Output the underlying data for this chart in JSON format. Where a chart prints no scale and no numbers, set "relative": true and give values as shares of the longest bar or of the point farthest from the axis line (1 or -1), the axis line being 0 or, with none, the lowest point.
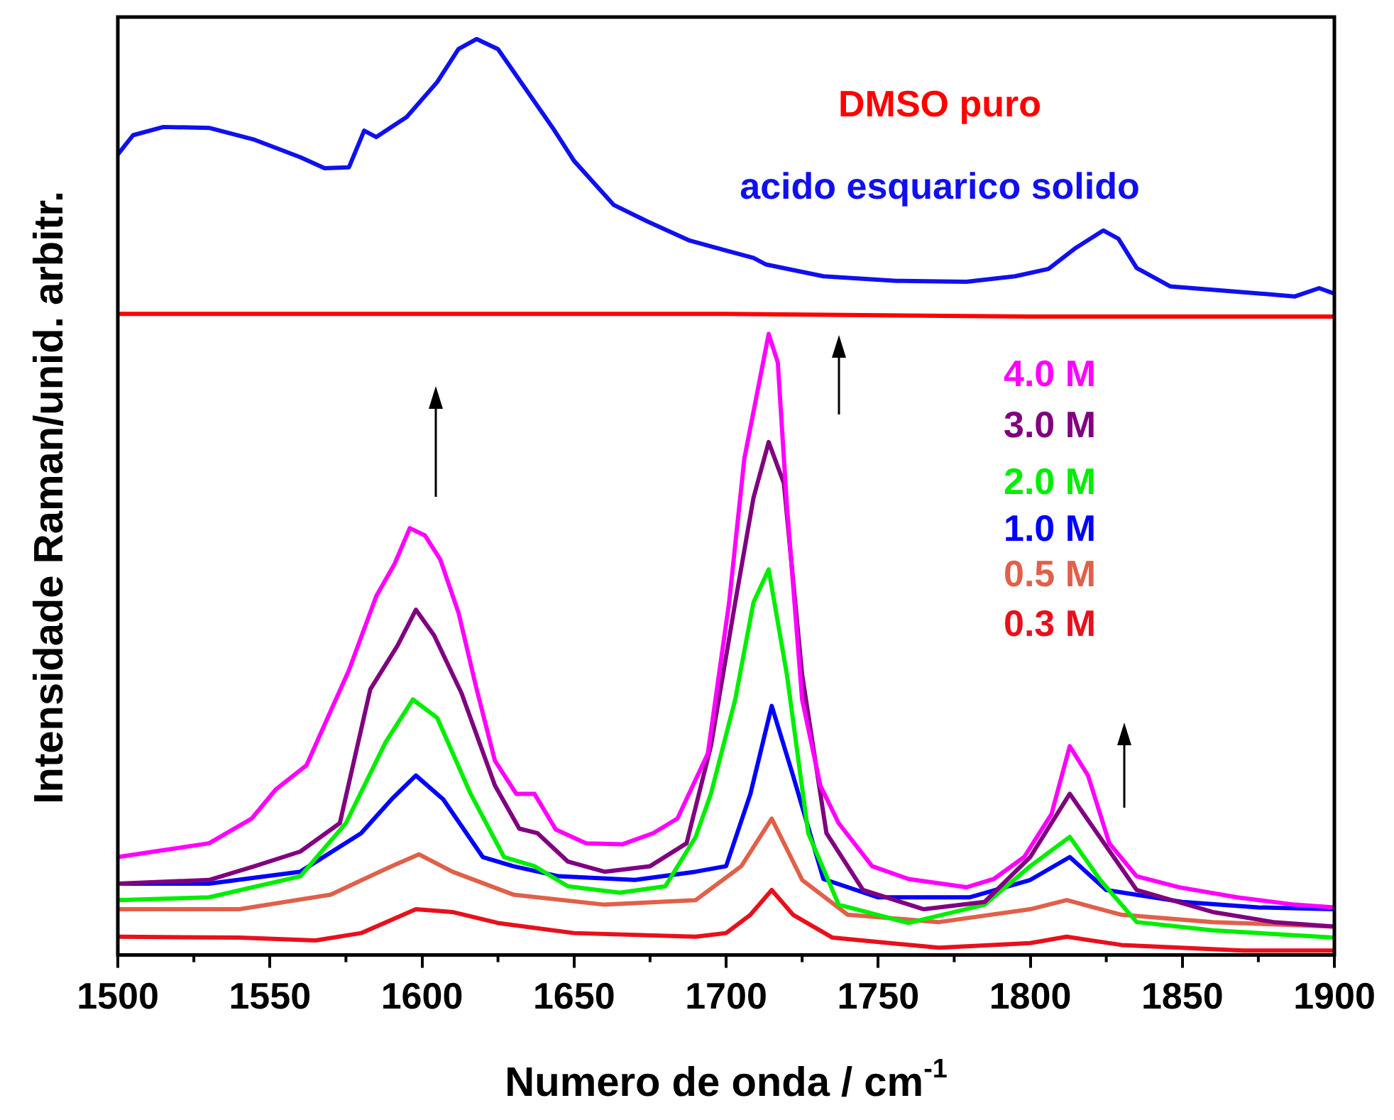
{
  "chart_data": {
    "type": "line",
    "xlabel": "Numero de onda / cm$^{-1}$",
    "ylabel": "Intensidade Raman/unid. arbitr.",
    "xlim": [
      1500,
      1900
    ],
    "xticks": [
      1500,
      1550,
      1600,
      1650,
      1700,
      1750,
      1800,
      1850,
      1900
    ],
    "relative": true,
    "tick_labels": "x",
    "line_style": "solid",
    "series": [
      {
        "name": "acido esquarico solido",
        "color": "#1010ee",
        "x": [
          1500,
          1505,
          1515,
          1530,
          1545,
          1560,
          1568,
          1576,
          1581,
          1585,
          1595,
          1605,
          1612,
          1618,
          1625,
          1643,
          1650,
          1663,
          1674,
          1688,
          1709,
          1713,
          1732,
          1756,
          1779,
          1795,
          1806,
          1815,
          1824,
          1829,
          1835,
          1846,
          1865,
          1887,
          1895,
          1900
        ],
        "values": [
          0.874,
          0.895,
          0.904,
          0.903,
          0.89,
          0.871,
          0.859,
          0.86,
          0.9,
          0.893,
          0.915,
          0.953,
          0.989,
          1,
          0.989,
          0.903,
          0.867,
          0.819,
          0.801,
          0.78,
          0.761,
          0.754,
          0.741,
          0.736,
          0.735,
          0.741,
          0.749,
          0.772,
          0.791,
          0.782,
          0.75,
          0.73,
          0.725,
          0.719,
          0.728,
          0.722
        ]
      },
      {
        "name": "DMSO puro",
        "color": "#ff0000",
        "x": [
          1500,
          1600,
          1700,
          1800,
          1900
        ],
        "values": [
          0.7,
          0.7,
          0.7,
          0.697,
          0.697
        ]
      },
      {
        "name": "4.0 M",
        "color": "#ff00ff",
        "x": [
          1500,
          1512,
          1530,
          1544,
          1552,
          1562,
          1569,
          1576,
          1585,
          1591,
          1596,
          1601,
          1606,
          1612,
          1618,
          1624,
          1631,
          1637,
          1644,
          1654,
          1666,
          1676,
          1684,
          1694,
          1701,
          1706,
          1714,
          1717,
          1720,
          1725,
          1731,
          1737,
          1748,
          1760,
          1779,
          1788,
          1798,
          1807,
          1813,
          1819,
          1826,
          1835,
          1849,
          1868,
          1887,
          1900
        ],
        "values": [
          0.107,
          0.113,
          0.122,
          0.149,
          0.181,
          0.207,
          0.259,
          0.311,
          0.392,
          0.427,
          0.466,
          0.458,
          0.432,
          0.374,
          0.29,
          0.212,
          0.176,
          0.176,
          0.137,
          0.122,
          0.121,
          0.133,
          0.149,
          0.22,
          0.385,
          0.542,
          0.678,
          0.647,
          0.49,
          0.279,
          0.185,
          0.144,
          0.097,
          0.083,
          0.074,
          0.083,
          0.107,
          0.154,
          0.228,
          0.196,
          0.122,
          0.086,
          0.074,
          0.063,
          0.055,
          0.052
        ]
      },
      {
        "name": "3.0 M",
        "color": "#800080",
        "x": [
          1500,
          1530,
          1545,
          1560,
          1573,
          1583,
          1592,
          1598,
          1604,
          1613,
          1624,
          1632,
          1638,
          1648,
          1660,
          1675,
          1687,
          1695,
          1703,
          1709,
          1714,
          1719,
          1725,
          1733,
          1745,
          1765,
          1785,
          1800,
          1813,
          1822,
          1835,
          1860,
          1880,
          1900
        ],
        "values": [
          0.078,
          0.082,
          0.097,
          0.113,
          0.144,
          0.29,
          0.338,
          0.377,
          0.349,
          0.286,
          0.185,
          0.138,
          0.133,
          0.102,
          0.091,
          0.097,
          0.122,
          0.228,
          0.385,
          0.499,
          0.56,
          0.515,
          0.306,
          0.133,
          0.071,
          0.05,
          0.058,
          0.107,
          0.176,
          0.133,
          0.071,
          0.047,
          0.036,
          0.031
        ]
      },
      {
        "name": "2.0 M",
        "color": "#00ee00",
        "x": [
          1500,
          1530,
          1560,
          1575,
          1588,
          1597,
          1605,
          1616,
          1627,
          1637,
          1648,
          1665,
          1680,
          1690,
          1695,
          1703,
          1709,
          1714,
          1720,
          1727,
          1737,
          1760,
          1785,
          1800,
          1813,
          1823,
          1835,
          1860,
          1900
        ],
        "values": [
          0.06,
          0.063,
          0.086,
          0.144,
          0.232,
          0.279,
          0.259,
          0.176,
          0.107,
          0.097,
          0.075,
          0.068,
          0.075,
          0.129,
          0.176,
          0.279,
          0.385,
          0.421,
          0.306,
          0.133,
          0.055,
          0.035,
          0.055,
          0.097,
          0.129,
          0.082,
          0.036,
          0.027,
          0.019
        ]
      },
      {
        "name": "1.0 M",
        "color": "#0000ff",
        "x": [
          1500,
          1530,
          1560,
          1580,
          1590,
          1598,
          1607,
          1620,
          1630,
          1645,
          1670,
          1690,
          1700,
          1708,
          1715,
          1722,
          1732,
          1750,
          1780,
          1800,
          1813,
          1825,
          1850,
          1875,
          1900
        ],
        "values": [
          0.078,
          0.078,
          0.091,
          0.133,
          0.17,
          0.196,
          0.17,
          0.107,
          0.097,
          0.086,
          0.082,
          0.091,
          0.097,
          0.176,
          0.272,
          0.196,
          0.083,
          0.063,
          0.063,
          0.082,
          0.107,
          0.071,
          0.058,
          0.052,
          0.05
        ]
      },
      {
        "name": "0.5 M",
        "color": "#e0604a",
        "x": [
          1500,
          1540,
          1570,
          1590,
          1599,
          1610,
          1630,
          1660,
          1690,
          1705,
          1715,
          1725,
          1740,
          1770,
          1800,
          1812,
          1830,
          1860,
          1900
        ],
        "values": [
          0.05,
          0.05,
          0.066,
          0.097,
          0.11,
          0.091,
          0.066,
          0.055,
          0.06,
          0.097,
          0.149,
          0.082,
          0.044,
          0.036,
          0.05,
          0.06,
          0.044,
          0.036,
          0.031
        ]
      },
      {
        "name": "0.3 M",
        "color": "#e8101c",
        "x": [
          1500,
          1540,
          1565,
          1580,
          1598,
          1610,
          1625,
          1650,
          1690,
          1700,
          1708,
          1715,
          1722,
          1735,
          1770,
          1800,
          1812,
          1830,
          1870,
          1900
        ],
        "values": [
          0.02,
          0.019,
          0.016,
          0.024,
          0.05,
          0.047,
          0.035,
          0.024,
          0.02,
          0.024,
          0.044,
          0.071,
          0.044,
          0.019,
          0.008,
          0.013,
          0.02,
          0.011,
          0.005,
          0.005
        ]
      }
    ]
  }
}
